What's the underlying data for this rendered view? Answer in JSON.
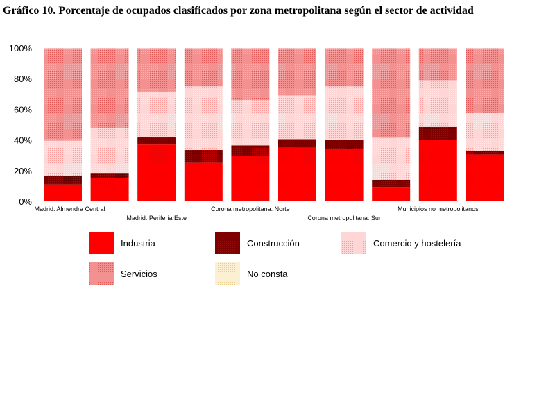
{
  "title": "Gráfico 10. Porcentaje de ocupados clasificados por zona metropolitana según el sector de actividad",
  "colors": {
    "industria": "#ff0000",
    "construccion": "#800000",
    "comercio": "#ffc8c8",
    "servicios": "#f08080",
    "no_consta": "#f5e6b4"
  },
  "legend": [
    {
      "label": "Industria",
      "key": "industria"
    },
    {
      "label": "Construcción",
      "key": "construccion"
    },
    {
      "label": "Comercio y hostelería",
      "key": "comercio"
    },
    {
      "label": "Servicios",
      "key": "servicios"
    },
    {
      "label": "No consta",
      "key": "no_consta"
    }
  ],
  "chart_data": {
    "type": "bar",
    "stacked": true,
    "title": "Gráfico 10. Porcentaje de ocupados clasificados por zona metropolitana según el sector de actividad",
    "y_ticks": [
      "0%",
      "20%",
      "40%",
      "60%",
      "80%",
      "100%"
    ],
    "ylim": [
      0,
      100
    ],
    "grid": true,
    "categories": [
      "Madrid: Almendra Central",
      "",
      "Madrid: Periferia Este",
      "",
      "Corona metropolitana: Norte",
      "",
      "Corona metropolitana: Sur",
      "",
      "Municipios no metropolitanos",
      ""
    ],
    "series": [
      {
        "name": "Industria",
        "key": "industria",
        "values": [
          11,
          15,
          37,
          25,
          29.5,
          35,
          34,
          9,
          40,
          30.5
        ]
      },
      {
        "name": "Construcción",
        "key": "construccion",
        "values": [
          5.5,
          3.5,
          5,
          8.5,
          7,
          5.5,
          6,
          5,
          8.5,
          2.5
        ]
      },
      {
        "name": "Comercio y hostelería",
        "key": "comercio",
        "values": [
          23,
          29.5,
          29.5,
          41.5,
          29.5,
          28.5,
          35,
          27.5,
          30.5,
          24.5
        ]
      },
      {
        "name": "Servicios",
        "key": "servicios",
        "values": [
          60.5,
          52,
          28.5,
          25,
          34,
          31,
          25,
          58.5,
          21,
          42.5
        ]
      },
      {
        "name": "No consta",
        "key": "no_consta",
        "values": [
          0,
          0,
          0,
          0,
          0,
          0,
          0,
          0,
          0,
          0
        ]
      }
    ]
  }
}
